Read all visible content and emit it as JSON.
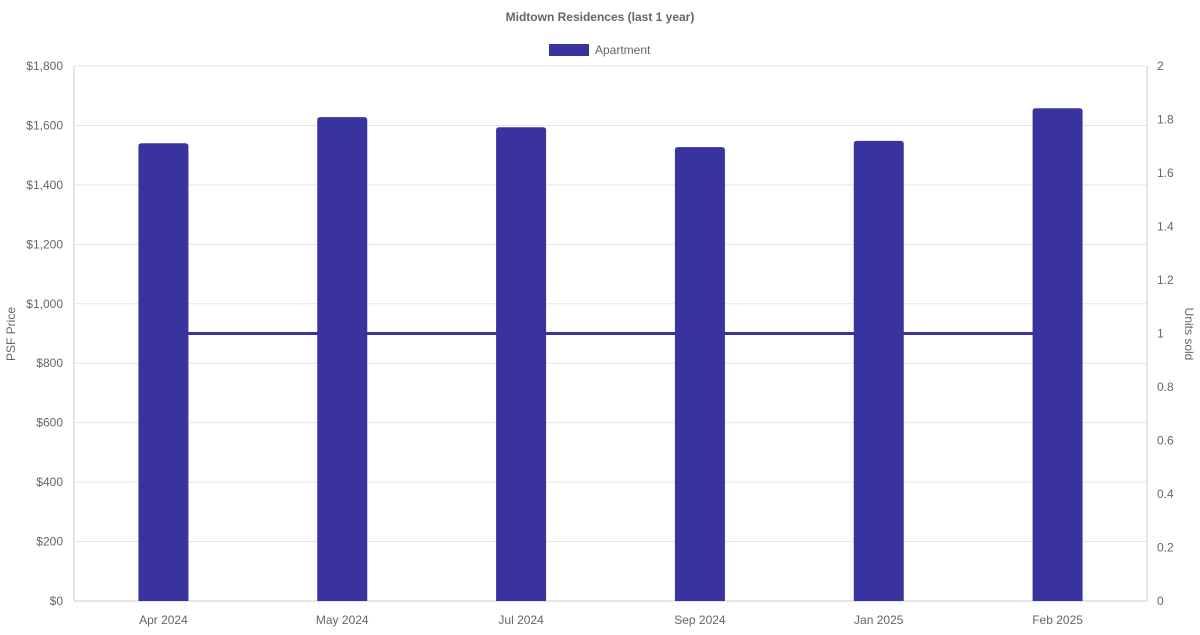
{
  "chart_data": {
    "type": "bar",
    "title": "Midtown Residences (last 1 year)",
    "categories": [
      "Apr 2024",
      "May 2024",
      "Jul 2024",
      "Sep 2024",
      "Jan 2025",
      "Feb 2025"
    ],
    "series": [
      {
        "name": "Apartment",
        "type": "bar",
        "axis": "left",
        "values": [
          1540,
          1628,
          1594,
          1527,
          1548,
          1658
        ]
      },
      {
        "type": "line",
        "axis": "right",
        "values": [
          1,
          1,
          1,
          1,
          1,
          1
        ]
      }
    ],
    "ylabel": "PSF Price",
    "ylim": [
      0,
      1800
    ],
    "yticks": [
      "$0",
      "$200",
      "$400",
      "$600",
      "$800",
      "$1,000",
      "$1,200",
      "$1,400",
      "$1,600",
      "$1,800"
    ],
    "y2label": "Units sold",
    "y2lim": [
      0,
      2
    ],
    "y2ticks": [
      "0",
      "0.2",
      "0.4",
      "0.6",
      "0.8",
      "1",
      "1.2",
      "1.4",
      "1.6",
      "1.8",
      "2"
    ],
    "legend_position": "top-center",
    "grid": true,
    "colors": {
      "bar": "#38339e",
      "line": "#38339e",
      "grid": "#e6e6e6",
      "axis": "#cccccc",
      "text": "#666666",
      "title": "#666666"
    }
  }
}
